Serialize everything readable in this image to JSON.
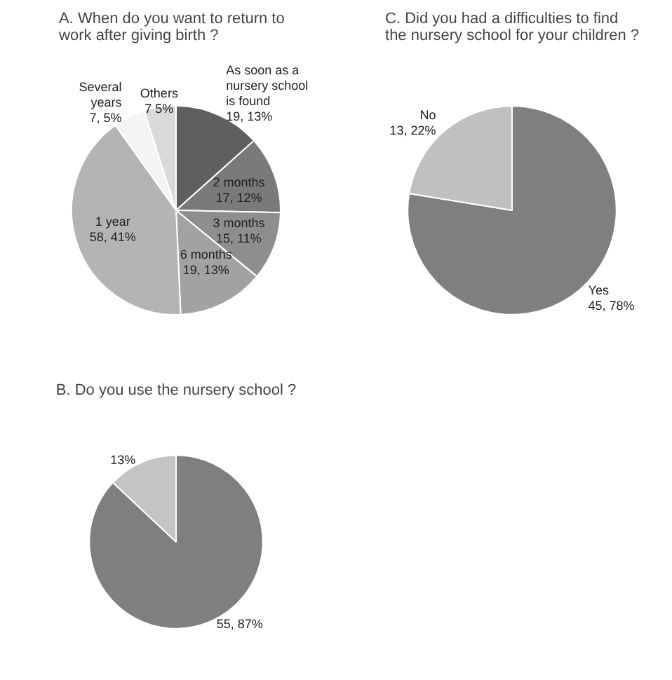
{
  "chart_data": [
    {
      "type": "pie",
      "title": "A.  When do you want  to return to work after giving birth ?",
      "categories": [
        "As soon as a nursery school is found",
        "2 months",
        "3 months",
        "6 months",
        "1 year",
        "Several years",
        "Others"
      ],
      "values": [
        19,
        17,
        15,
        19,
        58,
        7,
        7
      ],
      "colors": [
        "#5f5f5f",
        "#7a7a7a",
        "#8e8e8e",
        "#a2a2a2",
        "#b4b4b4",
        "#f4f4f4",
        "#d9d9d9"
      ],
      "value_labels": [
        "19, 13%",
        "17, 12%",
        "15, 11%",
        "19, 13%",
        "58, 41%",
        "7, 5%",
        "7 5%"
      ]
    },
    {
      "type": "pie",
      "title": "C. Did you had a difficulties to find the nursery school for your children ?",
      "categories": [
        "Yes",
        "No"
      ],
      "values": [
        45,
        13
      ],
      "colors": [
        "#7f7f7f",
        "#c0c0c0"
      ],
      "value_labels": [
        "45, 78%",
        "13, 22%"
      ]
    },
    {
      "type": "pie",
      "title": "B. Do you use the nursery school ?",
      "categories": [
        null,
        null
      ],
      "values": [
        87,
        13
      ],
      "colors": [
        "#7f7f7f",
        "#c4c4c4"
      ],
      "value_labels": [
        "55, 87%",
        "13%"
      ]
    }
  ]
}
